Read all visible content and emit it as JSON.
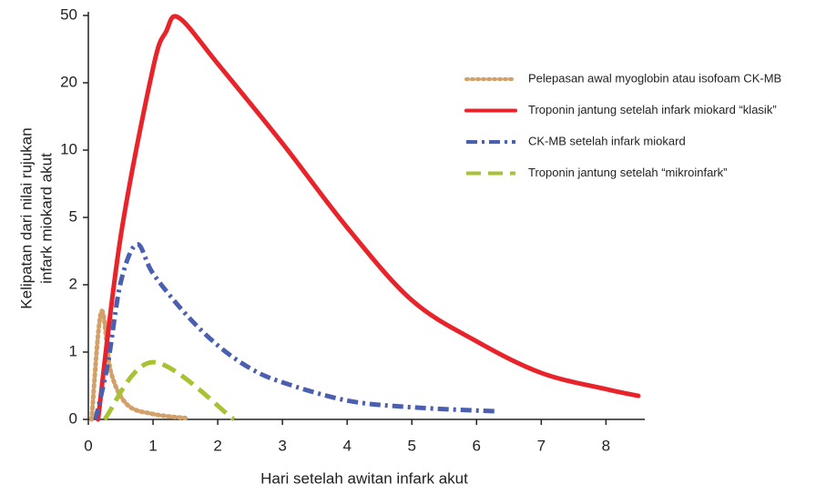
{
  "chart_data": {
    "type": "line",
    "x_label": "Hari setelah awitan infark akut",
    "y_label": [
      "Kelipatan dari nilai rujukan",
      "infark miokard akut"
    ],
    "xlim": [
      0,
      8.6
    ],
    "xticks": [
      0,
      1,
      2,
      3,
      4,
      5,
      6,
      7,
      8
    ],
    "ylim": [
      0,
      50
    ],
    "yticks": [
      0,
      1,
      2,
      5,
      10,
      20,
      50
    ],
    "y_scale": "ticks-evenly-spaced",
    "legend": "upper right",
    "series": [
      {
        "name": "Pelepasan awal myoglobin atau isofoam CK-MB",
        "color": "#d4a06a",
        "style": "dotted",
        "x": [
          0.05,
          0.2,
          0.35,
          0.6,
          1,
          1.5
        ],
        "values": [
          0,
          1.6,
          0.7,
          0.22,
          0.08,
          0.02
        ]
      },
      {
        "name": "Troponin jantung setelah infark miokard “klasik”",
        "color": "#e8232a",
        "style": "solid",
        "x": [
          0.15,
          0.5,
          1,
          1.2,
          1.4,
          2,
          3,
          4,
          5,
          6,
          7,
          8,
          8.5
        ],
        "values": [
          0,
          4.15,
          26.5,
          42.7,
          49,
          28.5,
          11,
          4.55,
          1.77,
          1.16,
          0.69,
          0.45,
          0.35
        ]
      },
      {
        "name": "CK-MB setelah infark miokard",
        "color": "#4a5fb0",
        "style": "dashdot",
        "x": [
          0.11,
          0.3,
          0.5,
          0.75,
          1,
          1.5,
          2,
          2.5,
          3,
          4,
          5,
          6.3
        ],
        "values": [
          0,
          0.82,
          2.1,
          3.8,
          2.5,
          1.57,
          1.1,
          0.76,
          0.55,
          0.28,
          0.18,
          0.12
        ]
      },
      {
        "name": "Troponin jantung setelah “mikroinfark”",
        "color": "#a8c234",
        "style": "dashed",
        "x": [
          0.25,
          1,
          2.25
        ],
        "values": [
          0,
          0.85,
          0
        ]
      }
    ]
  }
}
